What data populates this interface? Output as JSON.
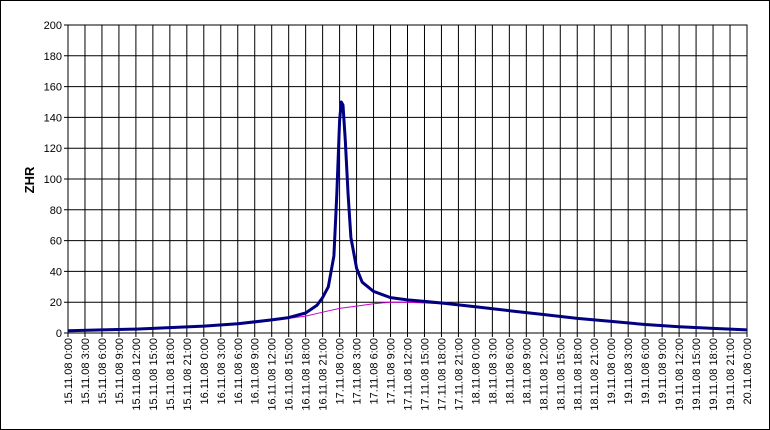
{
  "chart_data": {
    "type": "line",
    "y_label": "ZHR",
    "xlim": [
      0,
      120
    ],
    "ylim": [
      0,
      200
    ],
    "yticks": [
      0,
      20,
      40,
      60,
      80,
      100,
      120,
      140,
      160,
      180,
      200
    ],
    "xticks": [
      {
        "value": 0,
        "label": "15.11.08 0:00"
      },
      {
        "value": 3,
        "label": "15.11.08 3:00"
      },
      {
        "value": 6,
        "label": "15.11.08 6:00"
      },
      {
        "value": 9,
        "label": "15.11.08 9:00"
      },
      {
        "value": 12,
        "label": "15.11.08 12:00"
      },
      {
        "value": 15,
        "label": "15.11.08 15:00"
      },
      {
        "value": 18,
        "label": "15.11.08 18:00"
      },
      {
        "value": 21,
        "label": "15.11.08 21:00"
      },
      {
        "value": 24,
        "label": "16.11.08 0:00"
      },
      {
        "value": 27,
        "label": "16.11.08 3:00"
      },
      {
        "value": 30,
        "label": "16.11.08 6:00"
      },
      {
        "value": 33,
        "label": "16.11.08 9:00"
      },
      {
        "value": 36,
        "label": "16.11.08 12:00"
      },
      {
        "value": 39,
        "label": "16.11.08 15:00"
      },
      {
        "value": 42,
        "label": "16.11.08 18:00"
      },
      {
        "value": 45,
        "label": "16.11.08 21:00"
      },
      {
        "value": 48,
        "label": "17.11.08 0:00"
      },
      {
        "value": 51,
        "label": "17.11.08 3:00"
      },
      {
        "value": 54,
        "label": "17.11.08 6:00"
      },
      {
        "value": 57,
        "label": "17.11.08 9:00"
      },
      {
        "value": 60,
        "label": "17.11.08 12:00"
      },
      {
        "value": 63,
        "label": "17.11.08 15:00"
      },
      {
        "value": 66,
        "label": "17.11.08 18:00"
      },
      {
        "value": 69,
        "label": "17.11.08 21:00"
      },
      {
        "value": 72,
        "label": "18.11.08 0:00"
      },
      {
        "value": 75,
        "label": "18.11.08 3:00"
      },
      {
        "value": 78,
        "label": "18.11.08 6:00"
      },
      {
        "value": 81,
        "label": "18.11.08 9:00"
      },
      {
        "value": 84,
        "label": "18.11.08 12:00"
      },
      {
        "value": 87,
        "label": "18.11.08 15:00"
      },
      {
        "value": 90,
        "label": "18.11.08 18:00"
      },
      {
        "value": 93,
        "label": "18.11.08 21:00"
      },
      {
        "value": 96,
        "label": "19.11.08 0:00"
      },
      {
        "value": 99,
        "label": "19.11.08 3:00"
      },
      {
        "value": 102,
        "label": "19.11.08 6:00"
      },
      {
        "value": 105,
        "label": "19.11.08 9:00"
      },
      {
        "value": 108,
        "label": "19.11.08 12:00"
      },
      {
        "value": 111,
        "label": "19.11.08 15:00"
      },
      {
        "value": 114,
        "label": "19.11.08 18:00"
      },
      {
        "value": 117,
        "label": "19.11.08 21:00"
      },
      {
        "value": 120,
        "label": "20.11.08 0:00"
      }
    ],
    "grid": true,
    "series": [
      {
        "color": "#cc00cc",
        "width": 1,
        "x": [
          0,
          6,
          12,
          18,
          24,
          30,
          36,
          39,
          42,
          45,
          48,
          51,
          54,
          57,
          60,
          63,
          66,
          72,
          78,
          84,
          90,
          96,
          102,
          108,
          114,
          120
        ],
        "values": [
          1.5,
          2,
          2.5,
          3.5,
          4.5,
          6,
          8,
          9.5,
          11,
          13.5,
          16,
          17.5,
          19,
          20,
          20,
          19.5,
          19,
          17,
          14.5,
          12,
          9.5,
          7.5,
          5.5,
          4,
          3,
          2
        ]
      },
      {
        "color": "#000080",
        "width": 3,
        "x": [
          0,
          6,
          12,
          18,
          24,
          30,
          36,
          39,
          42,
          44,
          45,
          46,
          47,
          47.5,
          48,
          48.3,
          48.6,
          49,
          49.5,
          50,
          51,
          52,
          54,
          57,
          60,
          63,
          66,
          72,
          78,
          84,
          90,
          96,
          102,
          108,
          114,
          120
        ],
        "values": [
          1.5,
          2,
          2.5,
          3.5,
          4.5,
          6,
          8.5,
          10,
          13,
          18,
          23,
          30,
          50,
          90,
          138,
          150,
          148,
          125,
          90,
          62,
          42,
          33,
          27,
          23,
          21.5,
          20.5,
          19.5,
          17,
          14.5,
          12,
          9.5,
          7.5,
          5.5,
          4,
          3,
          2
        ]
      }
    ]
  }
}
